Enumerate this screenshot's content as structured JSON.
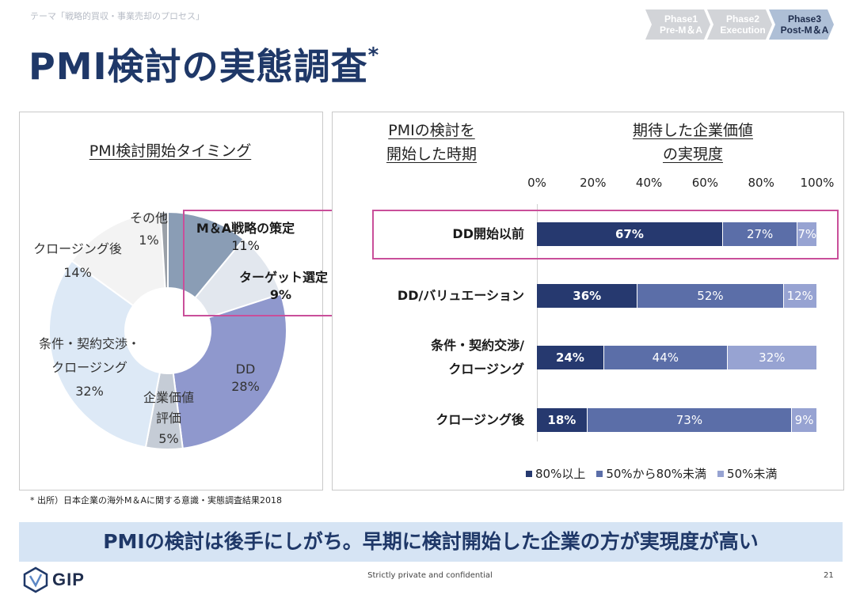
{
  "header": {
    "theme": "テーマ「戦略的買収・事業売却のプロセス」",
    "title": "PMI検討の実態調査",
    "title_mark": "*",
    "phases": [
      {
        "line1": "Phase1",
        "line2": "Pre-M＆A",
        "state": "done"
      },
      {
        "line1": "Phase2",
        "line2": "Execution",
        "state": "done"
      },
      {
        "line1": "Phase3",
        "line2": "Post-M＆A",
        "state": "current"
      }
    ]
  },
  "left_panel": {
    "title": "PMI検討開始タイミング",
    "chart_data": {
      "type": "pie",
      "title": "PMI検討開始タイミング",
      "slices": [
        {
          "label": "M＆A戦略の策定",
          "value": 11,
          "text": "11%",
          "color": "#8a9db5",
          "highlight": true
        },
        {
          "label": "ターゲット選定",
          "value": 9,
          "text": "9%",
          "color": "#e2e7ee",
          "highlight": true
        },
        {
          "label": "DD",
          "value": 28,
          "text": "28%",
          "color": "#8f98cd"
        },
        {
          "label": "企業価値評価",
          "label_lines": [
            "企業価値",
            "評価"
          ],
          "value": 5,
          "text": "5%",
          "color": "#c5ccd6"
        },
        {
          "label": "条件・契約交渉・クロージング",
          "label_lines": [
            "条件・契約交渉・",
            "クロージング"
          ],
          "value": 32,
          "text": "32%",
          "color": "#dde9f6"
        },
        {
          "label": "クロージング後",
          "value": 14,
          "text": "14%",
          "color": "#f3f3f3"
        },
        {
          "label": "その他",
          "value": 1,
          "text": "1%",
          "color": "#9aa0a8"
        }
      ]
    }
  },
  "right_panel": {
    "col_left_title": [
      "PMIの検討を",
      "開始した時期"
    ],
    "col_right_title": [
      "期待した企業価値",
      "の実現度"
    ],
    "chart_data": {
      "type": "bar",
      "orientation": "horizontal",
      "stacked": true,
      "xlim": [
        0,
        100
      ],
      "ticks": [
        "0%",
        "20%",
        "40%",
        "60%",
        "80%",
        "100%"
      ],
      "categories": [
        "DD開始以前",
        "DD/バリュエーション",
        "条件・契約交渉/クロージング",
        "クロージング後"
      ],
      "category_lines": [
        [
          "DD開始以前"
        ],
        [
          "DD/バリュエーション"
        ],
        [
          "条件・契約交渉/",
          "クロージング"
        ],
        [
          "クロージング後"
        ]
      ],
      "highlight_category": "DD開始以前",
      "series": [
        {
          "name": "80%以上",
          "color": "#26396f",
          "values": [
            67,
            36,
            24,
            18
          ],
          "labels": [
            "67%",
            "36%",
            "24%",
            "18%"
          ]
        },
        {
          "name": "50%から80%未満",
          "color": "#5b6ea8",
          "values": [
            27,
            52,
            44,
            73
          ],
          "labels": [
            "27%",
            "52%",
            "44%",
            "73%"
          ]
        },
        {
          "name": "50%未満",
          "color": "#97a3d2",
          "values": [
            7,
            12,
            32,
            9
          ],
          "labels": [
            "7%",
            "12%",
            "32%",
            "9%"
          ]
        }
      ],
      "legend_position": "bottom"
    }
  },
  "footnote": "* 出所）日本企業の海外M＆Aに関する意識・実態調査結果2018",
  "conclusion": "PMIの検討は後手にしがち。早期に検討開始した企業の方が実現度が高い",
  "footer": {
    "logo_text": "GIP",
    "confidential": "Strictly private and confidential",
    "page_number": "21"
  }
}
